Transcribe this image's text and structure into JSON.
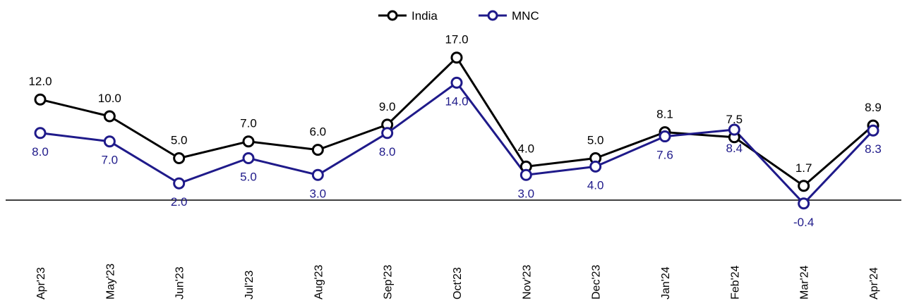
{
  "chart_data": {
    "type": "line",
    "categories": [
      "Apr'23",
      "May'23",
      "Jun'23",
      "Jul'23",
      "Aug'23",
      "Sep'23",
      "Oct'23",
      "Nov'23",
      "Dec'23",
      "Jan'24",
      "Feb'24",
      "Mar'24",
      "Apr'24"
    ],
    "series": [
      {
        "name": "India",
        "color": "#000000",
        "values": [
          12.0,
          10.0,
          5.0,
          7.0,
          6.0,
          9.0,
          17.0,
          4.0,
          5.0,
          8.1,
          7.5,
          1.7,
          8.9
        ],
        "labels": [
          "12.0",
          "10.0",
          "5.0",
          "7.0",
          "6.0",
          "9.0",
          "17.0",
          "4.0",
          "5.0",
          "8.1",
          "7.5",
          "1.7",
          "8.9"
        ]
      },
      {
        "name": "MNC",
        "color": "#1f1a8a",
        "values": [
          8.0,
          7.0,
          2.0,
          5.0,
          3.0,
          8.0,
          14.0,
          3.0,
          4.0,
          7.6,
          8.4,
          -0.4,
          8.3
        ],
        "labels": [
          "8.0",
          "7.0",
          "2.0",
          "5.0",
          "3.0",
          "8.0",
          "14.0",
          "3.0",
          "4.0",
          "7.6",
          "8.4",
          "-0.4",
          "8.3"
        ]
      }
    ],
    "legend_position": "top-center",
    "grid": false,
    "ylim": [
      -0.4,
      17.0
    ]
  }
}
